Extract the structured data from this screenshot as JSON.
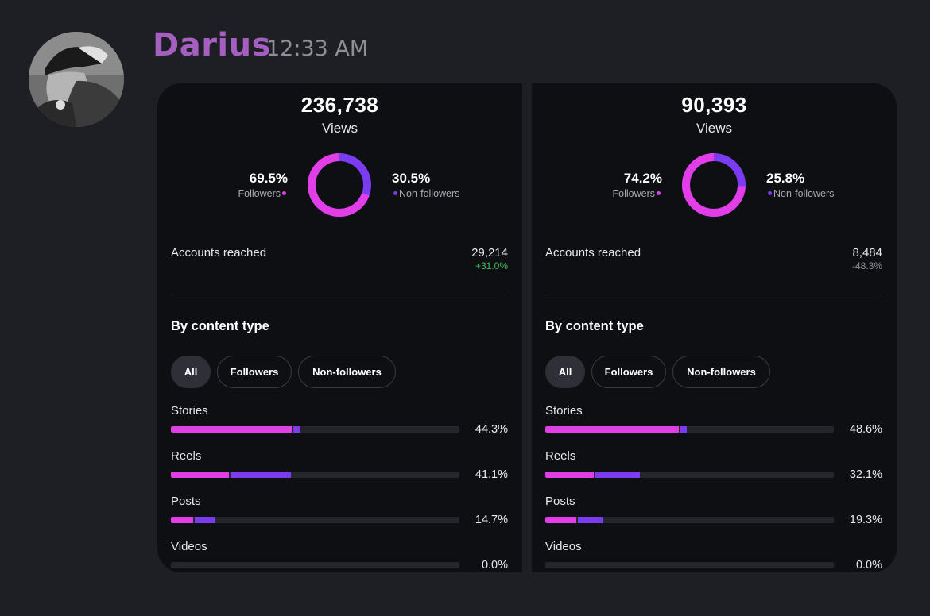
{
  "message": {
    "author": "Darius",
    "timestamp": "12:33 AM"
  },
  "colors": {
    "author": "#a45fc0",
    "followers": "#e23ee8",
    "non_followers": "#7b3bf0",
    "positive_change": "#3fbf5a",
    "negative_change": "#8e8f96"
  },
  "panels": [
    {
      "views": "236,738",
      "views_label": "Views",
      "followers_pct": "69.5%",
      "followers_label": "Followers",
      "followers_fraction": 0.695,
      "non_followers_pct": "30.5%",
      "non_followers_label": "Non-followers",
      "reach_label": "Accounts reached",
      "reach_value": "29,214",
      "reach_change": "+31.0%",
      "reach_change_positive": true,
      "section_title": "By content type",
      "filters": [
        "All",
        "Followers",
        "Non-followers"
      ],
      "content_types": [
        {
          "name": "Stories",
          "pct": "44.3%",
          "followers_fraction": 0.418,
          "non_followers_fraction": 0.025
        },
        {
          "name": "Reels",
          "pct": "41.1%",
          "followers_fraction": 0.2,
          "non_followers_fraction": 0.211
        },
        {
          "name": "Posts",
          "pct": "14.7%",
          "followers_fraction": 0.076,
          "non_followers_fraction": 0.071
        },
        {
          "name": "Videos",
          "pct": "0.0%",
          "followers_fraction": 0,
          "non_followers_fraction": 0
        }
      ]
    },
    {
      "views": "90,393",
      "views_label": "Views",
      "followers_pct": "74.2%",
      "followers_label": "Followers",
      "followers_fraction": 0.742,
      "non_followers_pct": "25.8%",
      "non_followers_label": "Non-followers",
      "reach_label": "Accounts reached",
      "reach_value": "8,484",
      "reach_change": "-48.3%",
      "reach_change_positive": false,
      "section_title": "By content type",
      "filters": [
        "All",
        "Followers",
        "Non-followers"
      ],
      "content_types": [
        {
          "name": "Stories",
          "pct": "48.6%",
          "followers_fraction": 0.462,
          "non_followers_fraction": 0.024
        },
        {
          "name": "Reels",
          "pct": "32.1%",
          "followers_fraction": 0.168,
          "non_followers_fraction": 0.153
        },
        {
          "name": "Posts",
          "pct": "19.3%",
          "followers_fraction": 0.108,
          "non_followers_fraction": 0.085
        },
        {
          "name": "Videos",
          "pct": "0.0%",
          "followers_fraction": 0,
          "non_followers_fraction": 0
        }
      ]
    }
  ]
}
